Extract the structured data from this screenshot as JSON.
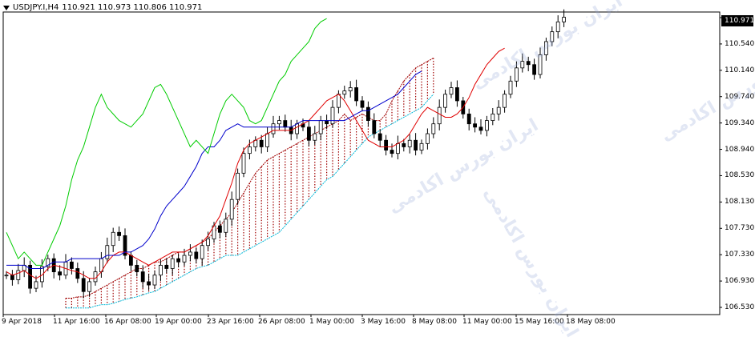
{
  "header": {
    "symbol_line": "USDJPY.I,H4",
    "ohlc": "110.921 110.973 110.806 110.971"
  },
  "price_badge": "110.971",
  "watermark": "ایران بورس اکادمی",
  "colors": {
    "up": "#000000",
    "down": "#000000",
    "tenkan": "#e00000",
    "kijun": "#0000cc",
    "chikou": "#00cc00",
    "senkou_a": "#a00000",
    "senkou_b": "#00b8d8"
  },
  "chart_data": {
    "type": "candlestick",
    "indicator": "Ichimoku",
    "y_ticks": [
      "110.971",
      "110.540",
      "110.140",
      "109.740",
      "109.340",
      "108.940",
      "108.530",
      "108.130",
      "107.730",
      "107.330",
      "106.930",
      "106.530"
    ],
    "x_ticks": [
      "9 Apr 2018",
      "11 Apr 16:00",
      "16 Apr 08:00",
      "19 Apr 00:00",
      "23 Apr 16:00",
      "26 Apr 08:00",
      "1 May 00:00",
      "3 May 16:00",
      "8 May 08:00",
      "11 May 00:00",
      "15 May 16:00",
      "18 May 08:00"
    ],
    "ylim": [
      106.45,
      111.05
    ],
    "series": [
      {
        "name": "price",
        "close": [
          107.05,
          106.98,
          107.12,
          107.2,
          106.85,
          106.95,
          107.18,
          107.3,
          107.1,
          107.05,
          107.25,
          107.15,
          107.0,
          106.8,
          106.95,
          107.1,
          107.3,
          107.5,
          107.7,
          107.65,
          107.35,
          107.2,
          107.1,
          106.95,
          106.9,
          107.05,
          107.2,
          107.15,
          107.3,
          107.25,
          107.35,
          107.4,
          107.3,
          107.5,
          107.6,
          107.8,
          107.7,
          107.9,
          108.2,
          108.6,
          108.9,
          109.0,
          109.1,
          109.0,
          109.2,
          109.35,
          109.4,
          109.3,
          109.2,
          109.35,
          109.3,
          109.1,
          109.2,
          109.4,
          109.35,
          109.6,
          109.8,
          109.85,
          109.9,
          109.7,
          109.6,
          109.4,
          109.2,
          109.1,
          108.95,
          108.9,
          109.05,
          109.0,
          109.1,
          108.95,
          109.05,
          109.2,
          109.35,
          109.6,
          109.8,
          109.9,
          109.7,
          109.5,
          109.35,
          109.3,
          109.25,
          109.4,
          109.5,
          109.6,
          109.8,
          110.0,
          110.2,
          110.3,
          110.25,
          110.1,
          110.4,
          110.6,
          110.75,
          110.9,
          110.97
        ]
      },
      {
        "name": "tenkan",
        "values": [
          107.1,
          107.05,
          107.08,
          107.12,
          107.05,
          107.0,
          107.05,
          107.15,
          107.2,
          107.18,
          107.15,
          107.12,
          107.1,
          107.05,
          107.0,
          107.0,
          107.1,
          107.25,
          107.35,
          107.4,
          107.4,
          107.35,
          107.3,
          107.25,
          107.2,
          107.25,
          107.3,
          107.35,
          107.4,
          107.4,
          107.4,
          107.45,
          107.5,
          107.55,
          107.65,
          107.8,
          107.95,
          108.2,
          108.45,
          108.75,
          108.95,
          109.05,
          109.1,
          109.15,
          109.2,
          109.25,
          109.25,
          109.25,
          109.25,
          109.3,
          109.35,
          109.4,
          109.5,
          109.6,
          109.7,
          109.75,
          109.8,
          109.7,
          109.55,
          109.4,
          109.25,
          109.1,
          109.05,
          109.0,
          109.0,
          109.0,
          109.05,
          109.1,
          109.2,
          109.35,
          109.5,
          109.6,
          109.55,
          109.5,
          109.45,
          109.45,
          109.5,
          109.6,
          109.75,
          109.95,
          110.1,
          110.25,
          110.35,
          110.45,
          110.5
        ]
      },
      {
        "name": "kijun",
        "values": [
          107.2,
          107.2,
          107.2,
          107.2,
          107.15,
          107.15,
          107.15,
          107.2,
          107.25,
          107.25,
          107.25,
          107.3,
          107.3,
          107.3,
          107.3,
          107.3,
          107.3,
          107.35,
          107.35,
          107.35,
          107.4,
          107.4,
          107.45,
          107.5,
          107.6,
          107.75,
          107.95,
          108.1,
          108.2,
          108.3,
          108.4,
          108.55,
          108.7,
          108.9,
          109.0,
          109.0,
          109.1,
          109.25,
          109.3,
          109.35,
          109.3,
          109.3,
          109.3,
          109.3,
          109.3,
          109.3,
          109.3,
          109.3,
          109.3,
          109.35,
          109.4,
          109.4,
          109.4,
          109.4,
          109.4,
          109.4,
          109.4,
          109.4,
          109.45,
          109.5,
          109.55,
          109.55,
          109.6,
          109.65,
          109.7,
          109.75,
          109.8,
          109.9,
          110.0,
          110.1,
          110.15
        ]
      },
      {
        "name": "chikou",
        "values": [
          107.7,
          107.5,
          107.3,
          107.4,
          107.3,
          107.2,
          107.2,
          107.4,
          107.6,
          107.8,
          108.1,
          108.5,
          108.8,
          109.0,
          109.3,
          109.6,
          109.8,
          109.6,
          109.5,
          109.4,
          109.35,
          109.3,
          109.4,
          109.5,
          109.7,
          109.9,
          109.95,
          109.8,
          109.6,
          109.4,
          109.2,
          109.0,
          109.1,
          109.0,
          108.9,
          109.2,
          109.5,
          109.7,
          109.8,
          109.7,
          109.6,
          109.4,
          109.35,
          109.4,
          109.6,
          109.8,
          110.0,
          110.1,
          110.3,
          110.4,
          110.5,
          110.6,
          110.8,
          110.9,
          110.95
        ]
      },
      {
        "name": "senkou_a",
        "values": [
          106.7,
          106.7,
          106.72,
          106.72,
          106.75,
          106.8,
          106.85,
          106.9,
          106.95,
          107.0,
          107.05,
          107.1,
          107.15,
          107.15,
          107.2,
          107.25,
          107.25,
          107.3,
          107.35,
          107.4,
          107.4,
          107.45,
          107.5,
          107.55,
          107.6,
          107.7,
          107.8,
          107.9,
          108.0,
          108.15,
          108.3,
          108.45,
          108.6,
          108.7,
          108.8,
          108.85,
          108.9,
          108.95,
          109.0,
          109.05,
          109.1,
          109.15,
          109.2,
          109.25,
          109.3,
          109.35,
          109.4,
          109.5,
          109.4,
          109.45,
          109.5,
          109.45,
          109.4,
          109.4,
          109.5,
          109.7,
          109.85,
          110.0,
          110.1,
          110.2,
          110.25,
          110.3,
          110.35
        ]
      },
      {
        "name": "senkou_b",
        "values": [
          106.55,
          106.55,
          106.55,
          106.55,
          106.55,
          106.58,
          106.6,
          106.6,
          106.62,
          106.65,
          106.68,
          106.7,
          106.72,
          106.75,
          106.78,
          106.8,
          106.85,
          106.9,
          106.95,
          107.0,
          107.05,
          107.1,
          107.15,
          107.18,
          107.2,
          107.25,
          107.3,
          107.35,
          107.35,
          107.35,
          107.4,
          107.45,
          107.5,
          107.55,
          107.6,
          107.65,
          107.7,
          107.8,
          107.9,
          108.0,
          108.1,
          108.2,
          108.3,
          108.4,
          108.5,
          108.55,
          108.65,
          108.75,
          108.85,
          108.95,
          109.05,
          109.15,
          109.2,
          109.25,
          109.3,
          109.35,
          109.4,
          109.45,
          109.5,
          109.55,
          109.6,
          109.7,
          109.8
        ]
      }
    ]
  }
}
